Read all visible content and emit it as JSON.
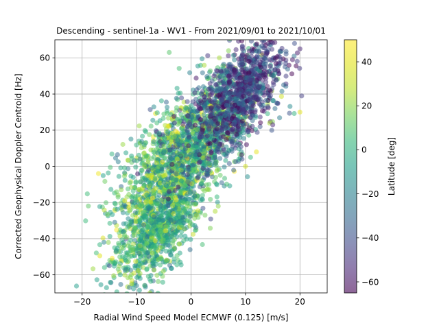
{
  "chart_data": {
    "type": "scatter",
    "title": "Descending - sentinel-1a - WV1 - From 2021/09/01 to 2021/10/01",
    "xlabel": "Radial Wind Speed Model ECMWF (0.125) [m/s]",
    "ylabel": "Corrected Geophysical Doppler Centroid [Hz]",
    "xlim": [
      -25,
      25
    ],
    "ylim": [
      -70,
      70
    ],
    "xticks": [
      -20,
      -10,
      0,
      10,
      20
    ],
    "yticks": [
      -60,
      -40,
      -20,
      0,
      20,
      40,
      60
    ],
    "grid": true,
    "marker_alpha": 0.5,
    "colorbar": {
      "label": "Latitude [deg]",
      "range": [
        -65,
        50
      ],
      "ticks": [
        -60,
        -40,
        -20,
        0,
        20,
        40
      ],
      "colormap": "viridis"
    },
    "clusters": [
      {
        "x_center": -6,
        "y_center": -35,
        "x_spread": 4,
        "y_spread": 12,
        "latitude_center": 0,
        "latitude_spread": 15
      },
      {
        "x_center": -4,
        "y_center": 0,
        "x_spread": 5,
        "y_spread": 14,
        "latitude_center": 5,
        "latitude_spread": 20
      },
      {
        "x_center": 3,
        "y_center": 20,
        "x_spread": 5,
        "y_spread": 15,
        "latitude_center": -10,
        "latitude_spread": 25
      },
      {
        "x_center": 9,
        "y_center": 40,
        "x_spread": 4,
        "y_spread": 12,
        "latitude_center": -45,
        "latitude_spread": 15
      }
    ],
    "outlier_points": [
      {
        "x": -17,
        "y": -4,
        "latitude": 45
      },
      {
        "x": -16,
        "y": -42,
        "latitude": -20
      },
      {
        "x": -15,
        "y": -55,
        "latitude": -40
      },
      {
        "x": -14,
        "y": -31,
        "latitude": -25
      },
      {
        "x": -13,
        "y": -60,
        "latitude": -5
      },
      {
        "x": -10,
        "y": -66,
        "latitude": -20
      },
      {
        "x": -4,
        "y": 63,
        "latitude": 10
      },
      {
        "x": 10,
        "y": 0,
        "latitude": 35
      },
      {
        "x": 12,
        "y": 8,
        "latitude": 40
      },
      {
        "x": 20,
        "y": 30,
        "latitude": 40
      },
      {
        "x": 19,
        "y": 68,
        "latitude": -40
      },
      {
        "x": 20,
        "y": 65,
        "latitude": -55
      },
      {
        "x": 17,
        "y": 45,
        "latitude": -30
      },
      {
        "x": 15,
        "y": 23,
        "latitude": -55
      },
      {
        "x": 5,
        "y": -22,
        "latitude": 20
      },
      {
        "x": 1,
        "y": -27,
        "latitude": 25
      }
    ]
  }
}
